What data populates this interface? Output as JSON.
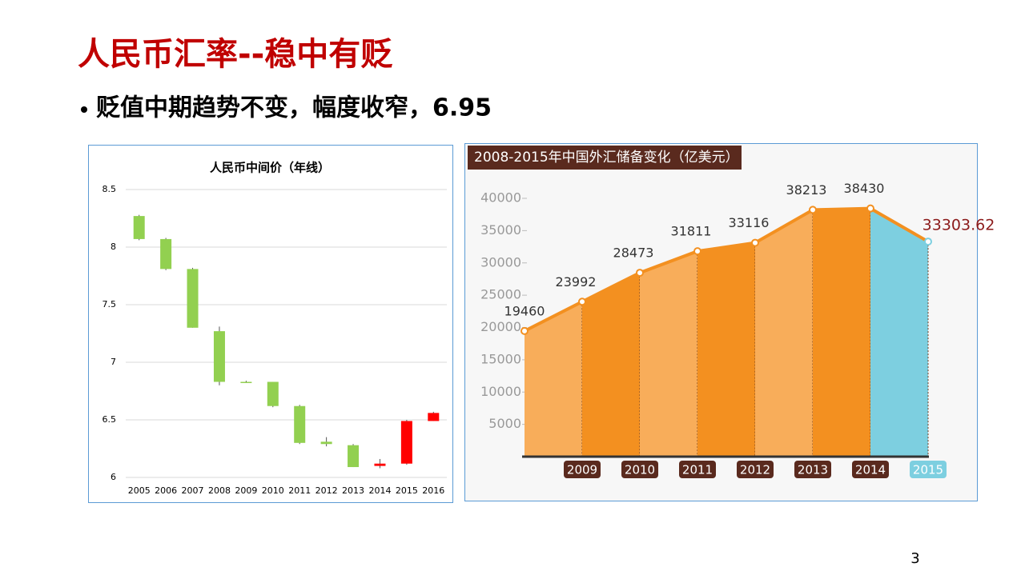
{
  "title": "人民币汇率--稳中有贬",
  "bullet": "贬值中期趋势不变，幅度收窄，6.95",
  "page_number": "3",
  "chart_data": [
    {
      "type": "candlestick",
      "title": "人民币中间价（年线）",
      "categories": [
        "2005",
        "2006",
        "2007",
        "2008",
        "2009",
        "2010",
        "2011",
        "2012",
        "2013",
        "2014",
        "2015",
        "2016"
      ],
      "open": [
        8.27,
        8.07,
        7.81,
        7.27,
        6.83,
        6.83,
        6.62,
        6.31,
        6.28,
        6.1,
        6.12,
        6.49
      ],
      "high": [
        8.28,
        8.08,
        7.82,
        7.31,
        6.84,
        6.83,
        6.63,
        6.35,
        6.29,
        6.16,
        6.5,
        6.57
      ],
      "low": [
        8.06,
        7.8,
        7.3,
        6.8,
        6.82,
        6.61,
        6.29,
        6.27,
        6.09,
        6.08,
        6.11,
        6.49
      ],
      "close": [
        8.07,
        7.81,
        7.3,
        6.83,
        6.82,
        6.62,
        6.3,
        6.29,
        6.09,
        6.12,
        6.49,
        6.56
      ],
      "up_color": "#ff0000",
      "down_color": "#92d050",
      "ylim": [
        6,
        8.5
      ],
      "yticks": [
        6,
        6.5,
        7,
        7.5,
        8,
        8.5
      ],
      "grid": true
    },
    {
      "type": "area",
      "title": "2008-2015年中国外汇储备变化（亿美元）",
      "categories": [
        null,
        "2009",
        "2010",
        "2011",
        "2012",
        "2013",
        "2014",
        "2015"
      ],
      "values": [
        19460,
        23992,
        28473,
        31811,
        33116,
        38213,
        38430,
        33303.62
      ],
      "segment_colors": [
        "#f8ad5a",
        "#f39020",
        "#f8ad5a",
        "#f39020",
        "#f8ad5a",
        "#f39020",
        "#7dcfe0"
      ],
      "line_color": "#f39020",
      "ylim": [
        0,
        40000
      ],
      "yticks": [
        5000,
        10000,
        15000,
        20000,
        25000,
        30000,
        35000,
        40000
      ]
    }
  ]
}
